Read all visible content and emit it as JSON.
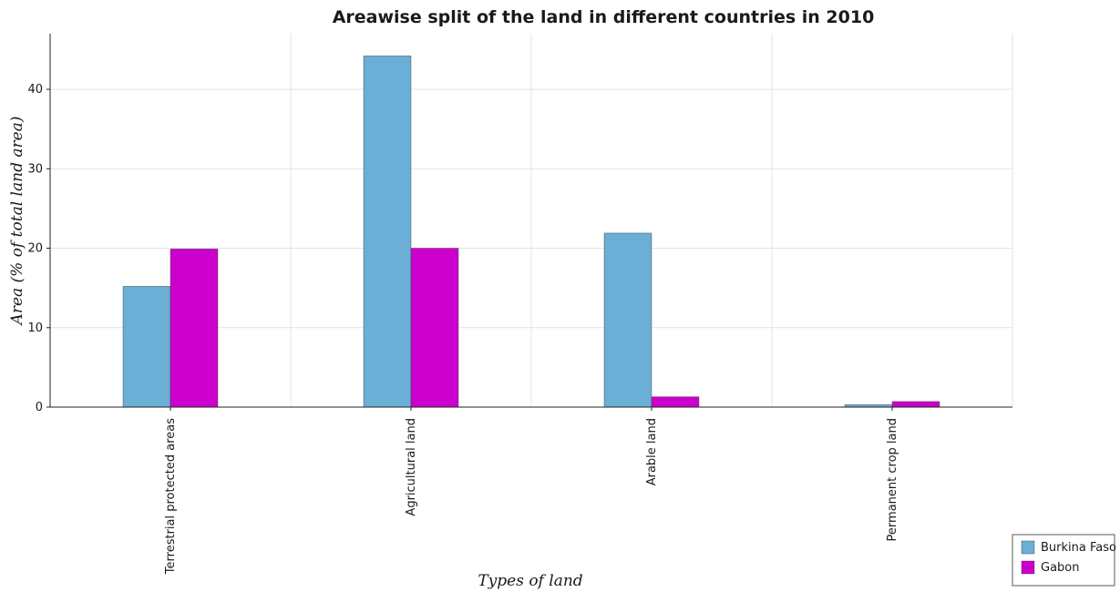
{
  "chart_data": {
    "type": "bar",
    "title": "Areawise split of the land in different countries in 2010",
    "xlabel": "Types of land",
    "ylabel": "Area (% of total land area)",
    "categories": [
      "Terrestrial protected areas",
      "Agricultural land",
      "Arable land",
      "Permanent crop land"
    ],
    "series": [
      {
        "name": "Burkina Faso",
        "color": "#6baed6",
        "values": [
          15.2,
          44.2,
          21.9,
          0.3
        ]
      },
      {
        "name": "Gabon",
        "color": "#cc00cc",
        "values": [
          19.9,
          20.0,
          1.3,
          0.7
        ]
      }
    ],
    "ylim": [
      0,
      47
    ],
    "yticks": [
      0,
      10,
      20,
      30,
      40
    ],
    "grid": true,
    "legend_position": "bottom-right"
  }
}
